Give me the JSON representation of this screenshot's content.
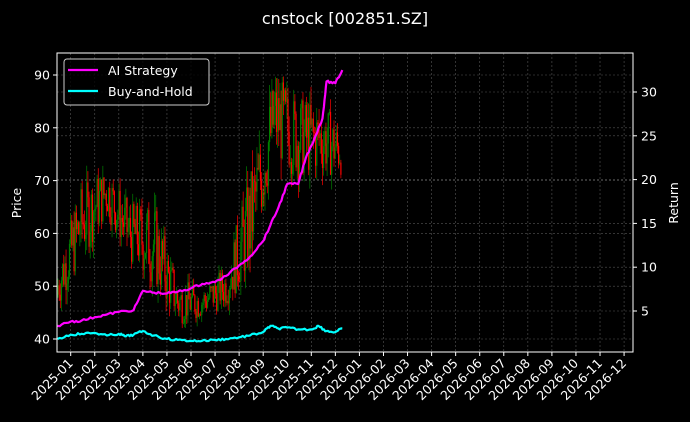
{
  "chart_data": {
    "type": "line",
    "subtype": "candlestick + dual-axis lines",
    "title": "cnstock [002851.SZ]",
    "xlabel": "",
    "ylabel_left": "Price",
    "ylabel_right": "Return",
    "ylim_left": [
      37.5,
      94.5
    ],
    "ylim_right": [
      1.5,
      35.2
    ],
    "left_ticks": [
      40,
      50,
      60,
      70,
      80,
      90
    ],
    "right_ticks": [
      5,
      10,
      15,
      20,
      25,
      30
    ],
    "x_ticks": [
      "2025-01",
      "2025-02",
      "2025-03",
      "2025-04",
      "2025-05",
      "2025-06",
      "2025-07",
      "2025-08",
      "2025-09",
      "2025-10",
      "2025-11",
      "2025-12",
      "2026-01",
      "2026-02",
      "2026-03",
      "2026-04",
      "2026-05",
      "2026-06",
      "2026-07",
      "2026-08",
      "2026-09",
      "2026-10",
      "2026-11",
      "2026-12"
    ],
    "grid": true,
    "legend_position": "upper left",
    "background": "#000000",
    "colors": {
      "up_candle": "#008000",
      "down_candle": "#ff0000",
      "ai_strategy": "#ff00ff",
      "buy_and_hold": "#00ffff",
      "grid": "#555555",
      "axes": "#ffffff"
    },
    "legend": [
      {
        "label": "AI Strategy",
        "color": "#ff00ff"
      },
      {
        "label": "Buy-and-Hold",
        "color": "#00ffff"
      }
    ],
    "price_series_monthly_approx": {
      "x": [
        "2024-12",
        "2025-01",
        "2025-02",
        "2025-03",
        "2025-04",
        "2025-05",
        "2025-06",
        "2025-07",
        "2025-08",
        "2025-09",
        "2025-10",
        "2025-11",
        "2025-12"
      ],
      "close": [
        50,
        62,
        68,
        60,
        58,
        47,
        47,
        50,
        62,
        82,
        78,
        78,
        75
      ],
      "high": [
        55,
        76,
        72,
        70,
        70,
        52,
        50,
        55,
        80,
        92,
        90,
        88,
        80
      ],
      "low": [
        42,
        55,
        58,
        54,
        47,
        40,
        41,
        44,
        52,
        68,
        68,
        68,
        68
      ]
    },
    "series": [
      {
        "name": "AI Strategy",
        "axis": "right",
        "x": [
          "2024-12-15",
          "2025-01-01",
          "2025-01-15",
          "2025-02-01",
          "2025-02-15",
          "2025-03-01",
          "2025-03-20",
          "2025-04-01",
          "2025-04-15",
          "2025-05-01",
          "2025-05-15",
          "2025-06-01",
          "2025-06-15",
          "2025-07-01",
          "2025-07-15",
          "2025-08-01",
          "2025-08-15",
          "2025-09-01",
          "2025-09-10",
          "2025-09-20",
          "2025-10-01",
          "2025-10-15",
          "2025-10-25",
          "2025-11-05",
          "2025-11-15",
          "2025-11-20",
          "2025-12-01",
          "2025-12-10"
        ],
        "values": [
          3.3,
          3.8,
          3.9,
          4.3,
          4.6,
          4.9,
          5.1,
          7.3,
          7.1,
          7.0,
          7.2,
          7.6,
          8.1,
          8.3,
          9.0,
          10.2,
          11.2,
          13.0,
          14.8,
          16.8,
          19.5,
          19.5,
          22.5,
          24.7,
          27.0,
          31.2,
          31.0,
          32.5
        ]
      },
      {
        "name": "Buy-and-Hold",
        "axis": "right",
        "x": [
          "2024-12-15",
          "2025-01-01",
          "2025-01-15",
          "2025-02-01",
          "2025-02-15",
          "2025-03-01",
          "2025-03-10",
          "2025-03-20",
          "2025-04-01",
          "2025-04-15",
          "2025-05-01",
          "2025-05-15",
          "2025-06-01",
          "2025-06-15",
          "2025-07-01",
          "2025-07-15",
          "2025-08-01",
          "2025-08-15",
          "2025-09-01",
          "2025-09-10",
          "2025-09-20",
          "2025-10-01",
          "2025-10-15",
          "2025-11-01",
          "2025-11-10",
          "2025-11-20",
          "2025-12-01",
          "2025-12-10"
        ],
        "values": [
          1.8,
          2.3,
          2.4,
          2.5,
          2.2,
          2.4,
          2.1,
          2.3,
          2.7,
          2.2,
          1.8,
          1.7,
          1.6,
          1.6,
          1.7,
          1.8,
          2.0,
          2.2,
          2.6,
          3.3,
          3.0,
          3.1,
          2.9,
          2.9,
          3.3,
          2.7,
          2.6,
          3.0
        ]
      }
    ]
  }
}
